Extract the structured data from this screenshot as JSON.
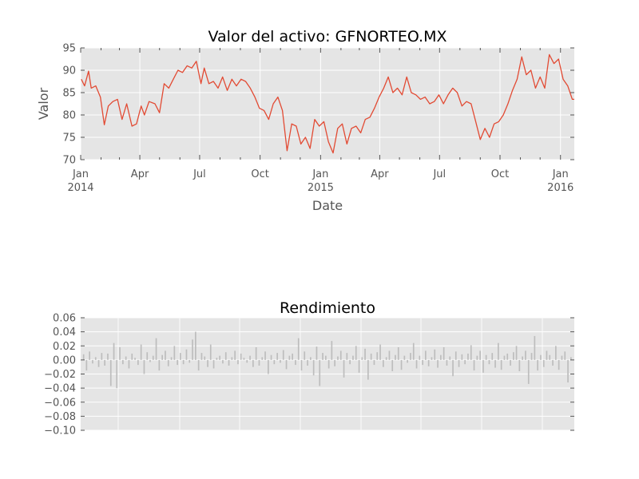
{
  "chart_data": [
    {
      "type": "line",
      "title": "Valor del activo: GFNORTEO.MX",
      "xlabel": "Date",
      "ylabel": "Valor",
      "ylim": [
        70,
        95
      ],
      "yticks": [
        70,
        75,
        80,
        85,
        90,
        95
      ],
      "xticks": [
        {
          "date": "2014-01-01",
          "label": "Jan",
          "sub": "2014"
        },
        {
          "date": "2014-04-01",
          "label": "Apr",
          "sub": ""
        },
        {
          "date": "2014-07-01",
          "label": "Jul",
          "sub": ""
        },
        {
          "date": "2014-10-01",
          "label": "Oct",
          "sub": ""
        },
        {
          "date": "2015-01-01",
          "label": "Jan",
          "sub": "2015"
        },
        {
          "date": "2015-04-01",
          "label": "Apr",
          "sub": ""
        },
        {
          "date": "2015-07-01",
          "label": "Jul",
          "sub": ""
        },
        {
          "date": "2015-10-01",
          "label": "Oct",
          "sub": ""
        },
        {
          "date": "2016-01-01",
          "label": "Jan",
          "sub": "2016"
        }
      ],
      "xlim": [
        "2014-01-01",
        "2016-01-22"
      ],
      "grid": true,
      "series": [
        {
          "color": "#e24a33",
          "points": [
            [
              "2014-01-02",
              88.0
            ],
            [
              "2014-01-07",
              86.5
            ],
            [
              "2014-01-13",
              89.8
            ],
            [
              "2014-01-17",
              86.0
            ],
            [
              "2014-01-24",
              86.5
            ],
            [
              "2014-01-31",
              84.0
            ],
            [
              "2014-02-06",
              77.8
            ],
            [
              "2014-02-12",
              82.0
            ],
            [
              "2014-02-19",
              83.0
            ],
            [
              "2014-02-26",
              83.5
            ],
            [
              "2014-03-05",
              79.0
            ],
            [
              "2014-03-12",
              82.5
            ],
            [
              "2014-03-20",
              77.5
            ],
            [
              "2014-03-27",
              78.0
            ],
            [
              "2014-04-03",
              82.0
            ],
            [
              "2014-04-08",
              80.0
            ],
            [
              "2014-04-15",
              83.0
            ],
            [
              "2014-04-24",
              82.5
            ],
            [
              "2014-05-01",
              80.5
            ],
            [
              "2014-05-08",
              87.0
            ],
            [
              "2014-05-15",
              86.0
            ],
            [
              "2014-05-22",
              88.0
            ],
            [
              "2014-05-29",
              90.0
            ],
            [
              "2014-06-05",
              89.5
            ],
            [
              "2014-06-12",
              91.0
            ],
            [
              "2014-06-19",
              90.5
            ],
            [
              "2014-06-26",
              92.0
            ],
            [
              "2014-07-03",
              87.0
            ],
            [
              "2014-07-08",
              90.5
            ],
            [
              "2014-07-15",
              87.0
            ],
            [
              "2014-07-22",
              87.5
            ],
            [
              "2014-07-29",
              86.0
            ],
            [
              "2014-08-05",
              88.5
            ],
            [
              "2014-08-12",
              85.5
            ],
            [
              "2014-08-19",
              88.0
            ],
            [
              "2014-08-26",
              86.5
            ],
            [
              "2014-09-02",
              88.0
            ],
            [
              "2014-09-09",
              87.5
            ],
            [
              "2014-09-16",
              86.0
            ],
            [
              "2014-09-23",
              84.0
            ],
            [
              "2014-09-30",
              81.5
            ],
            [
              "2014-10-07",
              81.0
            ],
            [
              "2014-10-14",
              79.0
            ],
            [
              "2014-10-21",
              82.5
            ],
            [
              "2014-10-28",
              84.0
            ],
            [
              "2014-11-04",
              81.0
            ],
            [
              "2014-11-11",
              72.0
            ],
            [
              "2014-11-18",
              78.0
            ],
            [
              "2014-11-25",
              77.5
            ],
            [
              "2014-12-02",
              73.5
            ],
            [
              "2014-12-09",
              75.0
            ],
            [
              "2014-12-16",
              72.5
            ],
            [
              "2014-12-23",
              79.0
            ],
            [
              "2014-12-30",
              77.5
            ],
            [
              "2015-01-06",
              78.5
            ],
            [
              "2015-01-13",
              74.0
            ],
            [
              "2015-01-20",
              71.5
            ],
            [
              "2015-01-27",
              77.0
            ],
            [
              "2015-02-03",
              78.0
            ],
            [
              "2015-02-10",
              73.5
            ],
            [
              "2015-02-17",
              77.0
            ],
            [
              "2015-02-24",
              77.5
            ],
            [
              "2015-03-03",
              76.0
            ],
            [
              "2015-03-10",
              79.0
            ],
            [
              "2015-03-17",
              79.5
            ],
            [
              "2015-03-24",
              81.5
            ],
            [
              "2015-03-31",
              84.0
            ],
            [
              "2015-04-07",
              86.0
            ],
            [
              "2015-04-14",
              88.5
            ],
            [
              "2015-04-21",
              85.0
            ],
            [
              "2015-04-28",
              86.0
            ],
            [
              "2015-05-05",
              84.5
            ],
            [
              "2015-05-12",
              88.5
            ],
            [
              "2015-05-19",
              85.0
            ],
            [
              "2015-05-26",
              84.5
            ],
            [
              "2015-06-02",
              83.5
            ],
            [
              "2015-06-09",
              84.0
            ],
            [
              "2015-06-16",
              82.5
            ],
            [
              "2015-06-23",
              83.0
            ],
            [
              "2015-06-30",
              84.5
            ],
            [
              "2015-07-07",
              82.5
            ],
            [
              "2015-07-14",
              84.5
            ],
            [
              "2015-07-21",
              86.0
            ],
            [
              "2015-07-28",
              85.0
            ],
            [
              "2015-08-04",
              82.0
            ],
            [
              "2015-08-11",
              83.0
            ],
            [
              "2015-08-18",
              82.5
            ],
            [
              "2015-08-25",
              78.5
            ],
            [
              "2015-09-01",
              74.5
            ],
            [
              "2015-09-08",
              77.0
            ],
            [
              "2015-09-15",
              75.0
            ],
            [
              "2015-09-22",
              78.0
            ],
            [
              "2015-09-29",
              78.5
            ],
            [
              "2015-10-06",
              80.0
            ],
            [
              "2015-10-13",
              82.5
            ],
            [
              "2015-10-20",
              85.5
            ],
            [
              "2015-10-27",
              88.0
            ],
            [
              "2015-11-03",
              93.0
            ],
            [
              "2015-11-10",
              89.0
            ],
            [
              "2015-11-17",
              90.0
            ],
            [
              "2015-11-24",
              86.0
            ],
            [
              "2015-12-01",
              88.5
            ],
            [
              "2015-12-08",
              86.0
            ],
            [
              "2015-12-15",
              93.5
            ],
            [
              "2015-12-22",
              91.5
            ],
            [
              "2015-12-29",
              92.5
            ],
            [
              "2016-01-05",
              88.0
            ],
            [
              "2016-01-12",
              86.5
            ],
            [
              "2016-01-19",
              83.5
            ],
            [
              "2016-01-22",
              83.5
            ]
          ]
        }
      ]
    },
    {
      "type": "bar",
      "title": "Rendimiento",
      "xlabel": "",
      "ylabel": "",
      "ylim": [
        -0.1,
        0.06
      ],
      "yticks": [
        "−0.10",
        "−0.08",
        "−0.06",
        "−0.04",
        "−0.02",
        "0.00",
        "0.02",
        "0.04",
        "0.06"
      ],
      "ytick_values": [
        -0.1,
        -0.08,
        -0.06,
        -0.04,
        -0.02,
        0.0,
        0.02,
        0.04,
        0.06
      ],
      "grid": true,
      "bar_color": "#bdbdbd",
      "values": [
        0.008,
        -0.015,
        0.012,
        -0.005,
        0.004,
        -0.01,
        0.01,
        -0.008,
        0.009,
        -0.037,
        0.024,
        -0.04,
        0.018,
        -0.006,
        0.005,
        -0.012,
        0.009,
        0.003,
        -0.007,
        0.022,
        -0.02,
        0.011,
        -0.003,
        0.006,
        0.031,
        -0.015,
        0.007,
        0.013,
        -0.009,
        0.004,
        0.02,
        -0.007,
        0.01,
        -0.006,
        0.015,
        -0.004,
        0.029,
        0.04,
        -0.015,
        0.01,
        0.005,
        -0.01,
        0.022,
        -0.012,
        0.003,
        0.006,
        -0.005,
        0.011,
        -0.008,
        0.004,
        0.013,
        -0.006,
        0.009,
        0.003,
        -0.004,
        0.006,
        -0.01,
        0.018,
        -0.008,
        0.004,
        0.012,
        -0.02,
        0.007,
        -0.006,
        0.01,
        -0.004,
        0.014,
        -0.013,
        0.006,
        0.009,
        -0.007,
        0.031,
        -0.015,
        0.012,
        -0.008,
        0.004,
        -0.022,
        0.019,
        -0.037,
        0.01,
        0.006,
        -0.012,
        0.027,
        -0.009,
        0.005,
        0.013,
        -0.025,
        0.01,
        -0.006,
        0.006,
        0.02,
        -0.018,
        0.004,
        0.016,
        -0.028,
        0.009,
        -0.007,
        0.011,
        0.022,
        -0.01,
        0.004,
        0.013,
        -0.016,
        0.007,
        0.018,
        -0.014,
        0.006,
        -0.004,
        0.01,
        0.024,
        -0.012,
        0.006,
        -0.007,
        0.013,
        -0.009,
        0.004,
        0.015,
        -0.011,
        0.007,
        0.018,
        -0.008,
        0.005,
        -0.023,
        0.012,
        -0.01,
        0.008,
        -0.006,
        0.009,
        0.021,
        -0.015,
        0.006,
        0.013,
        -0.018,
        0.007,
        -0.006,
        0.01,
        -0.011,
        0.024,
        -0.014,
        0.006,
        0.009,
        -0.008,
        0.011,
        0.02,
        -0.016,
        0.005,
        0.013,
        -0.034,
        0.01,
        0.034,
        -0.015,
        0.007,
        -0.01,
        0.013,
        0.007,
        -0.008,
        0.02,
        -0.014,
        0.006,
        0.012,
        -0.032,
        0.004
      ]
    }
  ]
}
